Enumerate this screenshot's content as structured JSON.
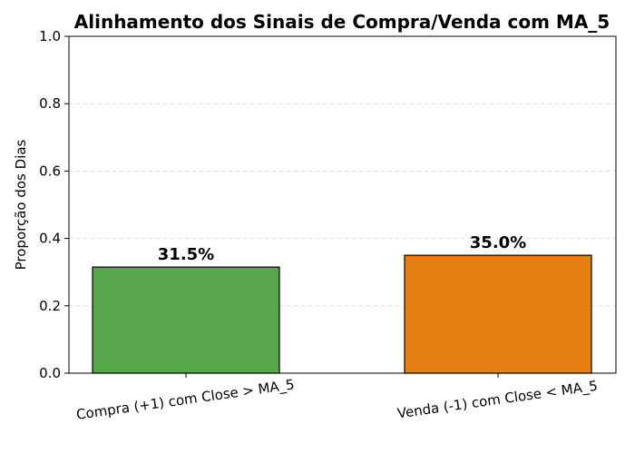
{
  "chart_data": {
    "type": "bar",
    "title": "Alinhamento dos Sinais de Compra/Venda com MA_5",
    "xlabel": "",
    "ylabel": "Proporção dos Dias",
    "ylim": [
      0,
      1.0
    ],
    "yticks": [
      "0.0",
      "0.2",
      "0.4",
      "0.6",
      "0.8",
      "1.0"
    ],
    "grid": "y-dashed",
    "categories": [
      "Compra (+1) com Close > MA_5",
      "Venda (-1) com Close < MA_5"
    ],
    "values": [
      0.315,
      0.35
    ],
    "data_labels": [
      "31.5%",
      "35.0%"
    ],
    "colors": [
      "#55a74a",
      "#e67e12"
    ]
  }
}
